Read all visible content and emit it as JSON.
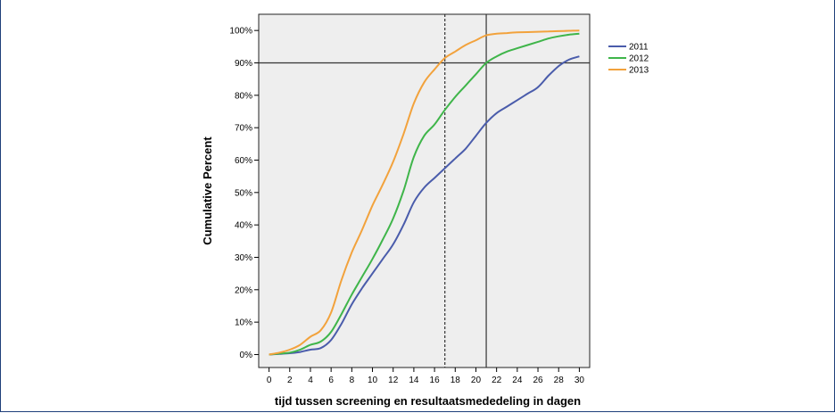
{
  "chart_data": {
    "type": "line",
    "title": "",
    "xlabel": "tijd tussen screening en resultaatsmededeling in dagen",
    "ylabel": "Cumulative Percent",
    "xlim": [
      -1,
      31
    ],
    "ylim": [
      -4,
      105
    ],
    "x_ticks": [
      0,
      2,
      4,
      6,
      8,
      10,
      12,
      14,
      16,
      18,
      20,
      22,
      24,
      26,
      28,
      30
    ],
    "y_ticks": [
      0,
      10,
      20,
      30,
      40,
      50,
      60,
      70,
      80,
      90,
      100
    ],
    "y_tick_suffix": "%",
    "grid": false,
    "legend_position": "right",
    "reference_lines": [
      {
        "axis": "y",
        "value": 90,
        "style": "solid"
      },
      {
        "axis": "x",
        "value": 21,
        "style": "solid"
      },
      {
        "axis": "x",
        "value": 17,
        "style": "dashed"
      }
    ],
    "series": [
      {
        "name": "2011",
        "color": "#4a5cab",
        "x": [
          0,
          1,
          2,
          3,
          4,
          5,
          6,
          7,
          8,
          9,
          10,
          11,
          12,
          13,
          14,
          15,
          16,
          17,
          18,
          19,
          20,
          21,
          22,
          23,
          24,
          25,
          26,
          27,
          28,
          29,
          30
        ],
        "y": [
          0,
          0.2,
          0.4,
          0.8,
          1.5,
          2,
          4.5,
          9.5,
          15.5,
          20.5,
          25,
          29.5,
          34,
          40,
          47,
          51.5,
          54.5,
          57.5,
          60.5,
          63.5,
          67.5,
          71.5,
          74.5,
          76.5,
          78.5,
          80.5,
          82.5,
          86,
          89,
          91,
          92
        ]
      },
      {
        "name": "2012",
        "color": "#3fb54a",
        "x": [
          0,
          1,
          2,
          3,
          4,
          5,
          6,
          7,
          8,
          9,
          10,
          11,
          12,
          13,
          14,
          15,
          16,
          17,
          18,
          19,
          20,
          21,
          22,
          23,
          24,
          25,
          26,
          27,
          28,
          29,
          30
        ],
        "y": [
          0,
          0.3,
          0.6,
          1.5,
          3,
          4,
          7,
          12.5,
          18.5,
          24,
          29.5,
          35.5,
          42,
          50.5,
          61,
          67.5,
          71,
          75.5,
          79.5,
          83,
          86.5,
          90,
          92,
          93.5,
          94.5,
          95.5,
          96.5,
          97.5,
          98.2,
          98.7,
          99
        ]
      },
      {
        "name": "2013",
        "color": "#f2a23c",
        "x": [
          0,
          1,
          2,
          3,
          4,
          5,
          6,
          7,
          8,
          9,
          10,
          11,
          12,
          13,
          14,
          15,
          16,
          17,
          18,
          19,
          20,
          21,
          22,
          23,
          24,
          25,
          26,
          27,
          28,
          29,
          30
        ],
        "y": [
          0,
          0.6,
          1.5,
          3,
          5.5,
          7.5,
          13,
          23,
          31.5,
          38.5,
          46,
          52.5,
          59.5,
          68,
          77.5,
          84,
          88,
          91.5,
          93.5,
          95.5,
          97,
          98.5,
          99,
          99.2,
          99.4,
          99.5,
          99.6,
          99.7,
          99.8,
          99.9,
          100
        ]
      }
    ]
  }
}
